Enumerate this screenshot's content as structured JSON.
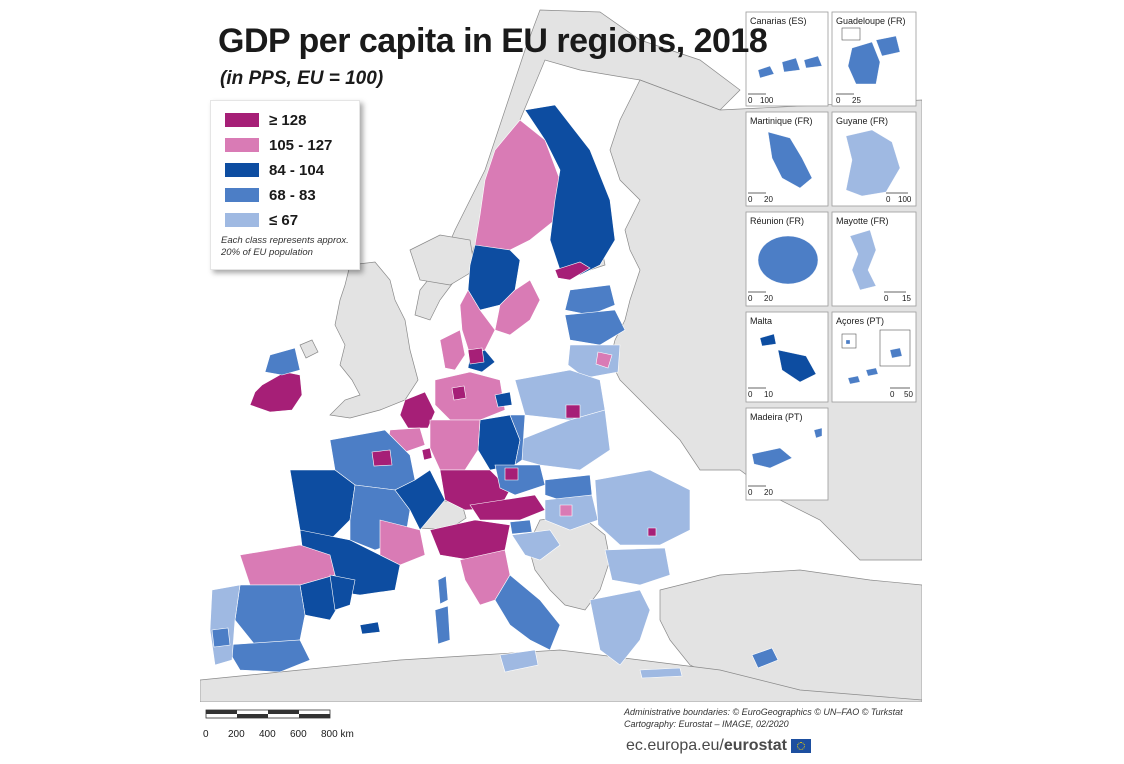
{
  "map": {
    "title": "GDP per capita in EU regions, 2018",
    "subtitle": "(in PPS, EU = 100)",
    "legend": [
      {
        "label": "≥ 128",
        "color": "#a61f77"
      },
      {
        "label": "105 - 127",
        "color": "#d97bb5"
      },
      {
        "label": "84 - 104",
        "color": "#0d4da1"
      },
      {
        "label": "68 - 83",
        "color": "#4c7ec6"
      },
      {
        "label": "≤ 67",
        "color": "#9fb9e2"
      }
    ],
    "legend_note": "Each class represents approx. 20% of EU population",
    "colors": {
      "non_eu": "#e3e3e3",
      "sea": "#ffffff",
      "border": "#7a7a7a"
    },
    "insets": [
      {
        "name": "Canarias (ES)",
        "scale": [
          "0",
          "100"
        ]
      },
      {
        "name": "Guadeloupe (FR)",
        "scale": [
          "0",
          "25"
        ]
      },
      {
        "name": "Martinique (FR)",
        "scale": [
          "0",
          "20"
        ]
      },
      {
        "name": "Guyane (FR)",
        "scale": [
          "0",
          "100"
        ]
      },
      {
        "name": "Réunion (FR)",
        "scale": [
          "0",
          "20"
        ]
      },
      {
        "name": "Mayotte (FR)",
        "scale": [
          "0",
          "15"
        ]
      },
      {
        "name": "Malta",
        "scale": [
          "0",
          "10"
        ]
      },
      {
        "name": "Açores (PT)",
        "scale": [
          "0",
          "50"
        ]
      },
      {
        "name": "Madeira (PT)",
        "scale": [
          "0",
          "20"
        ]
      }
    ],
    "scale_bar": {
      "ticks": [
        "0",
        "200",
        "400",
        "600",
        "800 km"
      ]
    },
    "credits": [
      "Administrative boundaries: © EuroGeographics © UN–FAO © Turkstat",
      "Cartography: Eurostat – IMAGE, 02/2020"
    ],
    "brand": {
      "prefix": "ec.europa.eu/",
      "name": "eurostat"
    }
  }
}
